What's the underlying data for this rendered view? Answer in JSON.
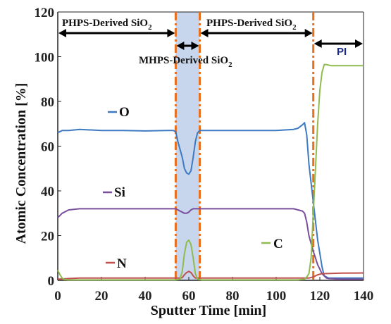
{
  "chart_data": {
    "type": "line",
    "xlabel": "Sputter Time [min]",
    "ylabel": "Atomic Concentration [%]",
    "xlim": [
      0,
      140
    ],
    "ylim": [
      0,
      120
    ],
    "xticks": [
      "0",
      "20",
      "40",
      "60",
      "80",
      "100",
      "120",
      "140"
    ],
    "yticks": [
      "0",
      "20",
      "40",
      "60",
      "80",
      "100",
      "120"
    ],
    "grid": false,
    "series": [
      {
        "name": "O",
        "color": "#3d7ac1",
        "x": [
          0,
          2,
          5,
          10,
          20,
          30,
          40,
          50,
          53,
          54,
          55,
          57,
          58,
          59,
          60,
          61,
          62,
          63,
          64,
          65,
          70,
          80,
          90,
          100,
          108,
          110,
          112,
          113,
          114,
          115,
          117,
          119,
          121,
          122,
          124,
          130,
          140
        ],
        "y": [
          66,
          67,
          67,
          67.5,
          67,
          67,
          66.8,
          67,
          67,
          66.5,
          62,
          55,
          50,
          48,
          47.5,
          49,
          55,
          62,
          66,
          67,
          67,
          67,
          67,
          67,
          67.5,
          68,
          69.5,
          70.5,
          65,
          52,
          35,
          18,
          6,
          2,
          1,
          1,
          1
        ]
      },
      {
        "name": "Si",
        "color": "#7a4e9e",
        "x": [
          0,
          2,
          5,
          10,
          20,
          30,
          40,
          50,
          54,
          55,
          56,
          57,
          58,
          59,
          60,
          61,
          62,
          63,
          64,
          65,
          70,
          80,
          90,
          100,
          108,
          112,
          113,
          114,
          115,
          117,
          119,
          121,
          123,
          124,
          130,
          140
        ],
        "y": [
          28,
          30,
          31.5,
          32,
          32,
          32,
          32,
          32,
          32,
          31.5,
          31,
          30.5,
          30,
          30,
          30.5,
          31.5,
          32,
          32,
          32,
          32,
          32,
          32,
          32,
          32,
          32,
          31,
          30,
          26,
          20,
          13,
          7,
          3,
          1,
          0.8,
          0.5,
          0.5
        ]
      },
      {
        "name": "N",
        "color": "#c0504d",
        "x": [
          0,
          5,
          10,
          20,
          30,
          40,
          50,
          56,
          57,
          58,
          59,
          60,
          61,
          62,
          63,
          65,
          70,
          80,
          90,
          100,
          110,
          113,
          115,
          117,
          119,
          121,
          122,
          130,
          140
        ],
        "y": [
          0.5,
          0.8,
          1,
          1,
          1,
          1,
          1,
          1,
          1.2,
          2.5,
          3.5,
          4,
          3.5,
          2,
          1,
          1,
          1,
          1,
          1,
          1,
          1,
          1,
          1,
          1.5,
          2.5,
          3,
          3,
          3.2,
          3.3
        ]
      },
      {
        "name": "C",
        "color": "#8fbc4f",
        "x": [
          0,
          1,
          2,
          3,
          5,
          10,
          20,
          30,
          40,
          50,
          54,
          56,
          57,
          58,
          59,
          60,
          61,
          62,
          63,
          64,
          66,
          70,
          80,
          90,
          100,
          110,
          113,
          114,
          115,
          116,
          117,
          118,
          119,
          120,
          121,
          122,
          123,
          125,
          130,
          135,
          140
        ],
        "y": [
          4.5,
          2.5,
          1,
          0.3,
          0.2,
          0.2,
          0.2,
          0.2,
          0.2,
          0.2,
          0.2,
          0.5,
          4,
          12,
          17,
          18,
          16,
          10,
          3,
          0.5,
          0.2,
          0.2,
          0.2,
          0.2,
          0.2,
          0.2,
          0.5,
          1.5,
          3,
          10,
          30,
          50,
          70,
          85,
          93,
          96.5,
          96.5,
          96,
          96,
          96,
          96
        ]
      }
    ],
    "shaded_region": {
      "x": [
        54,
        65
      ],
      "color": "#c7d6ec"
    },
    "vertical_lines": [
      {
        "x": 54,
        "color": "#e8701c"
      },
      {
        "x": 65,
        "color": "#e8701c"
      },
      {
        "x": 117,
        "color": "#e8701c"
      }
    ],
    "annotations": [
      {
        "label": "PHPS-Derived SiO",
        "sub": "2",
        "x_span": [
          0,
          54
        ]
      },
      {
        "label": "MHPS-Derived SiO",
        "sub": "2",
        "x_span": [
          54,
          65
        ]
      },
      {
        "label": "PHPS-Derived SiO",
        "sub": "2",
        "x_span": [
          65,
          117
        ]
      },
      {
        "label": "PI",
        "sub": "",
        "x_span": [
          117,
          140
        ]
      }
    ],
    "legend_labels": [
      {
        "name": "O",
        "color": "#3d7ac1"
      },
      {
        "name": "Si",
        "color": "#7a4e9e"
      },
      {
        "name": "N",
        "color": "#c0504d"
      },
      {
        "name": "C",
        "color": "#8fbc4f"
      }
    ]
  }
}
